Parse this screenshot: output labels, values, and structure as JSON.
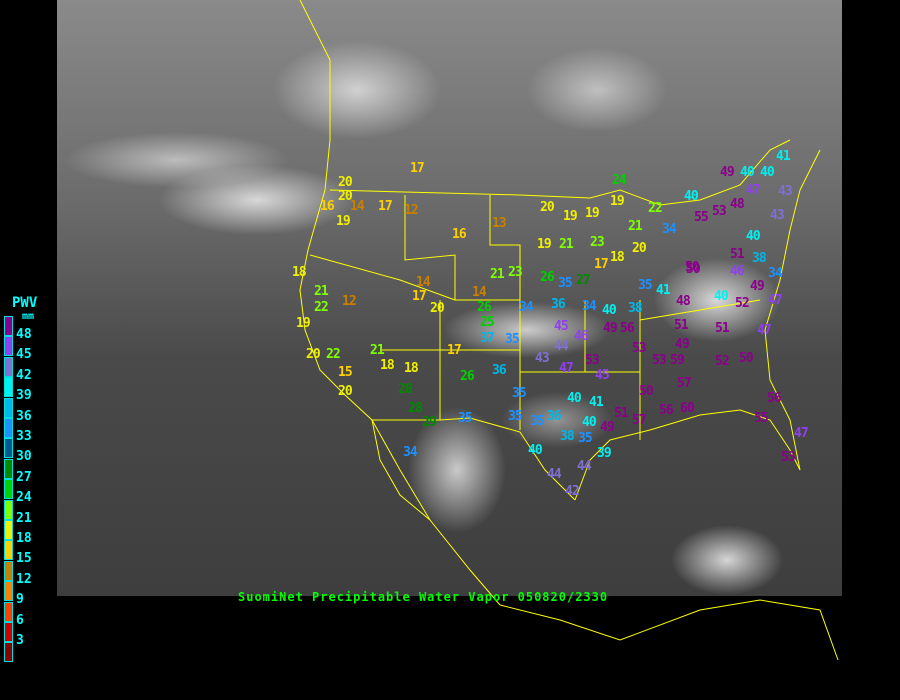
{
  "title": "SuomiNet Precipitable Water Vapor 050820/2330",
  "legend": {
    "title": "PWV",
    "unit": "mm",
    "ticks": [
      "48",
      "45",
      "42",
      "39",
      "36",
      "33",
      "30",
      "27",
      "24",
      "21",
      "18",
      "15",
      "12",
      "9",
      "6",
      "3"
    ],
    "colors": [
      "#8b008b",
      "#9040f0",
      "#8070d0",
      "#00f0f0",
      "#00b8e8",
      "#1e90ff",
      "#005a90",
      "#008800",
      "#00d000",
      "#80ff00",
      "#f0f000",
      "#ffd000",
      "#c88000",
      "#ff8000",
      "#ff4000",
      "#d00000",
      "#8b0000"
    ]
  },
  "stations": [
    "17",
    "20",
    "20",
    "16",
    "14",
    "17",
    "12",
    "19",
    "16",
    "13",
    "20",
    "19",
    "19",
    "19",
    "24",
    "22",
    "21",
    "34",
    "40",
    "19",
    "21",
    "23",
    "18",
    "20",
    "17",
    "27",
    "26",
    "35",
    "21",
    "23",
    "18",
    "21",
    "22",
    "12",
    "19",
    "14",
    "17",
    "20",
    "14",
    "26",
    "25",
    "37",
    "34",
    "36",
    "34",
    "40",
    "38",
    "35",
    "41",
    "48",
    "50",
    "45",
    "46",
    "49",
    "56",
    "53",
    "35",
    "44",
    "43",
    "47",
    "53",
    "45",
    "17",
    "21",
    "18",
    "18",
    "20",
    "22",
    "15",
    "20",
    "26",
    "28",
    "28",
    "29",
    "35",
    "34",
    "36",
    "35",
    "35",
    "35",
    "36",
    "40",
    "41",
    "40",
    "38",
    "35",
    "39",
    "40",
    "44",
    "44",
    "42",
    "51",
    "49",
    "53",
    "59",
    "50",
    "57",
    "51",
    "49",
    "57",
    "56",
    "60",
    "52",
    "50",
    "51",
    "52",
    "47",
    "47",
    "56",
    "55",
    "47",
    "53",
    "50",
    "46",
    "49",
    "40",
    "40",
    "51",
    "38",
    "34",
    "55",
    "53",
    "48",
    "47",
    "40",
    "40",
    "43",
    "49",
    "43",
    "41"
  ]
}
